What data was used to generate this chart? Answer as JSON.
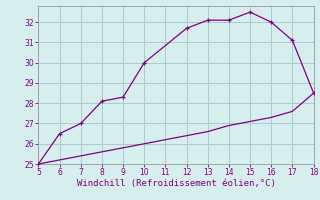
{
  "xlabel": "Windchill (Refroidissement éolien,°C)",
  "upper_x": [
    5,
    6,
    7,
    8,
    9,
    10,
    12,
    13,
    14,
    15,
    16,
    17,
    18
  ],
  "upper_y": [
    25.0,
    26.5,
    27.0,
    28.1,
    28.3,
    30.0,
    31.7,
    32.1,
    32.1,
    32.5,
    32.0,
    31.1,
    28.5
  ],
  "lower_x": [
    5,
    6,
    7,
    8,
    9,
    10,
    11,
    12,
    13,
    14,
    15,
    16,
    17,
    18
  ],
  "lower_y": [
    25.0,
    25.2,
    25.4,
    25.6,
    25.8,
    26.0,
    26.2,
    26.4,
    26.6,
    26.9,
    27.1,
    27.3,
    27.6,
    28.5
  ],
  "line_color": "#800080",
  "marker": "+",
  "bg_color": "#d6eeee",
  "grid_color": "#aacccc",
  "xlim": [
    5,
    18
  ],
  "ylim": [
    25,
    32.8
  ],
  "xticks": [
    5,
    6,
    7,
    8,
    9,
    10,
    11,
    12,
    13,
    14,
    15,
    16,
    17,
    18
  ],
  "yticks": [
    25,
    26,
    27,
    28,
    29,
    30,
    31,
    32
  ],
  "tick_fontsize": 5.5,
  "xlabel_fontsize": 6.5
}
